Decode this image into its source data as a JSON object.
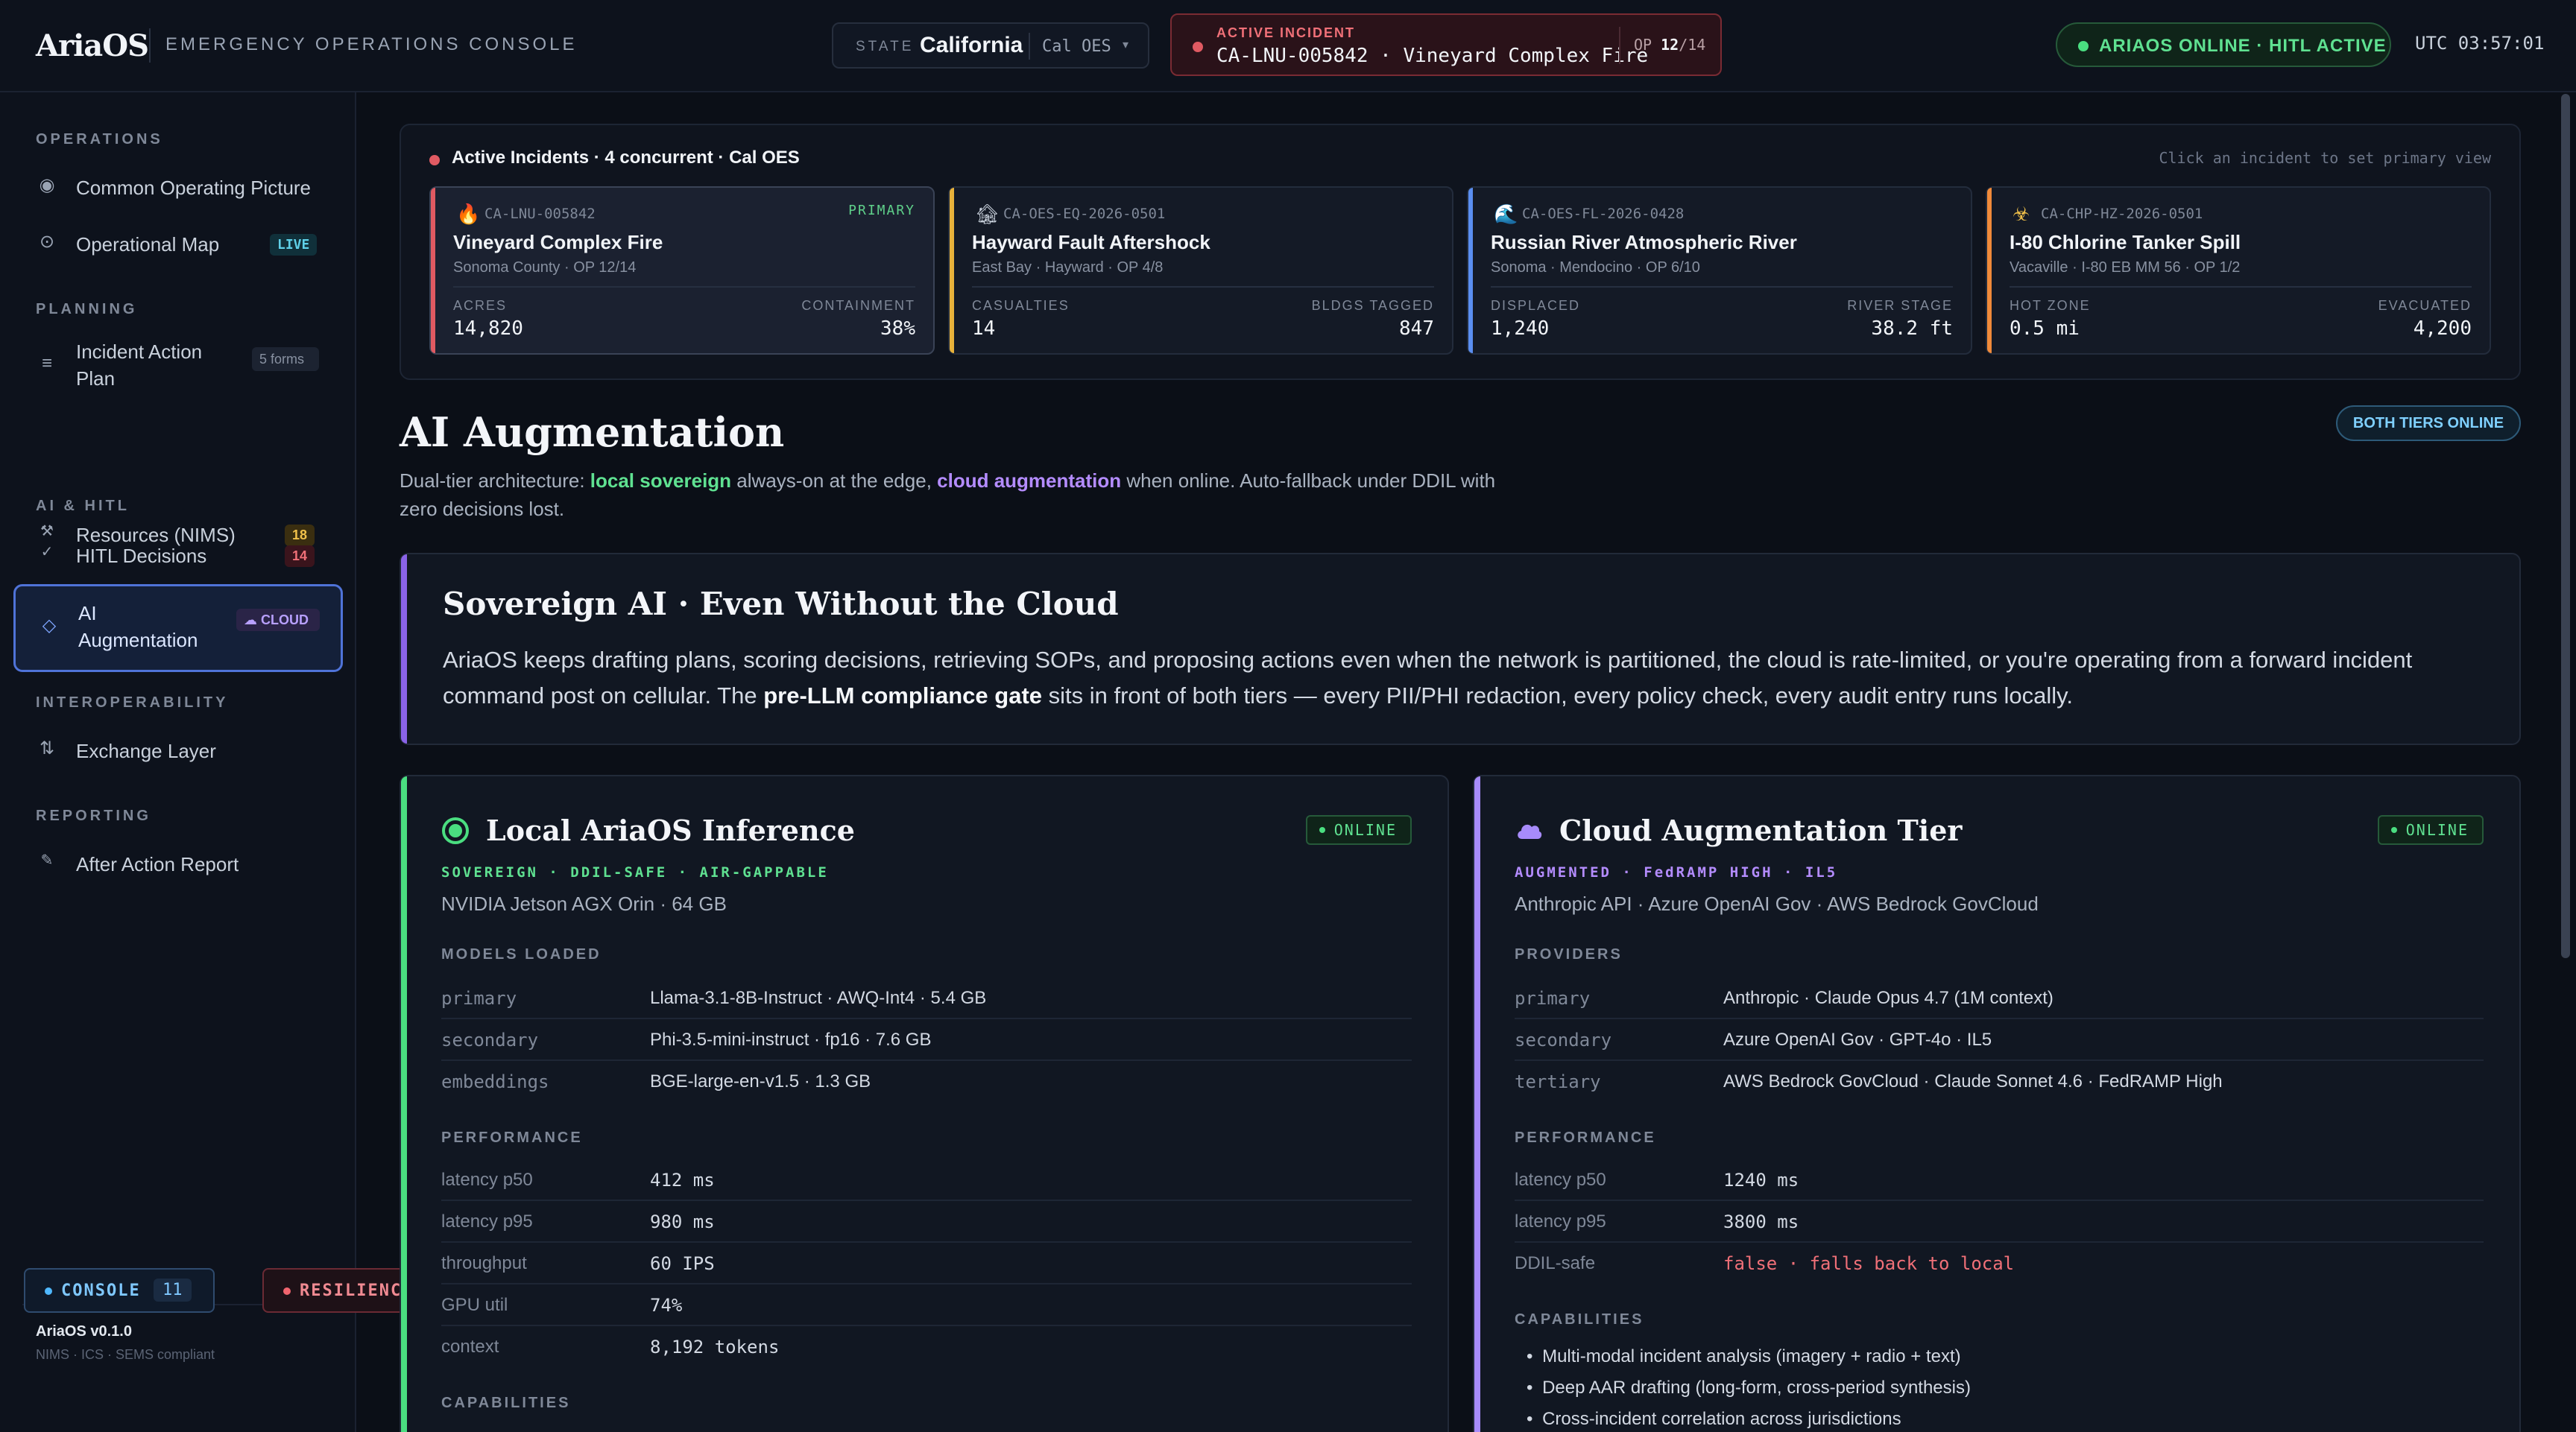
{
  "topbar": {
    "logo": "AriaOS",
    "console_title": "EMERGENCY OPERATIONS CONSOLE",
    "state_label": "STATE",
    "state_value": "California",
    "state_agency": "Cal OES",
    "active_incident_label": "ACTIVE INCIDENT",
    "active_incident_name": "CA-LNU-005842 · Vineyard Complex Fire",
    "op_prefix": "OP ",
    "op_current": "12",
    "op_total": "/14",
    "status_pill": "ARIAOS ONLINE · HITL ACTIVE",
    "utc_clock": "UTC 03:57:01"
  },
  "sidebar": {
    "sections": {
      "operations": "OPERATIONS",
      "planning": "PLANNING",
      "ai_hitl": "AI & HITL",
      "interoperability": "INTEROPERABILITY",
      "reporting": "REPORTING"
    },
    "items": {
      "cop": "Common Operating Picture",
      "map": "Operational Map",
      "map_badge": "LIVE",
      "iap": "Incident Action Plan",
      "iap_badge": "5 forms",
      "resources": "Resources (NIMS)",
      "resources_badge": "18",
      "hitl": "HITL Decisions",
      "hitl_badge": "14",
      "ai_aug": "AI Augmentation",
      "ai_aug_badge": "☁ CLOUD",
      "exchange": "Exchange Layer",
      "aar": "After Action Report"
    },
    "footer_version": "AriaOS v0.1.0",
    "footer_sub": "NIMS · ICS · SEMS compliant",
    "console_label": "CONSOLE",
    "console_count": "11",
    "resilience_label": "RESILIENCE LAB"
  },
  "incidents": {
    "title": "Active Incidents · 4 concurrent · Cal OES",
    "hint": "Click an incident to set primary view",
    "primary_tag": "PRIMARY",
    "cards": [
      {
        "emoji": "🔥",
        "id": "CA-LNU-005842",
        "name": "Vineyard Complex Fire",
        "sub": "Sonoma County · OP 12/14",
        "k1": "ACRES",
        "v1": "14,820",
        "k2": "CONTAINMENT",
        "v2": "38%",
        "color": "#e05a62"
      },
      {
        "emoji": "🏚",
        "id": "CA-OES-EQ-2026-0501",
        "name": "Hayward Fault Aftershock",
        "sub": "East Bay · Hayward · OP 4/8",
        "k1": "CASUALTIES",
        "v1": "14",
        "k2": "BLDGS TAGGED",
        "v2": "847",
        "color": "#e8b23a"
      },
      {
        "emoji": "🌊",
        "id": "CA-OES-FL-2026-0428",
        "name": "Russian River Atmospheric River",
        "sub": "Sonoma · Mendocino · OP 6/10",
        "k1": "DISPLACED",
        "v1": "1,240",
        "k2": "RIVER STAGE",
        "v2": "38.2 ft",
        "color": "#5a8ef0"
      },
      {
        "emoji": "☣",
        "id": "CA-CHP-HZ-2026-0501",
        "name": "I-80 Chlorine Tanker Spill",
        "sub": "Vacaville · I-80 EB MM 56 · OP 1/2",
        "k1": "HOT ZONE",
        "v1": "0.5 mi",
        "k2": "EVACUATED",
        "v2": "4,200",
        "color": "#f08a3a"
      }
    ]
  },
  "augmentation": {
    "title": "AI Augmentation",
    "desc_1": "Dual-tier architecture: ",
    "desc_local": "local sovereign",
    "desc_2": " always-on at the edge, ",
    "desc_cloud": "cloud augmentation",
    "desc_3": " when online. Auto-fallback under DDIL with zero decisions lost.",
    "both_pill": "BOTH TIERS ONLINE"
  },
  "sovereign": {
    "title": "Sovereign AI · Even Without the Cloud",
    "text_1": "AriaOS keeps drafting plans, scoring decisions, retrieving SOPs, and proposing actions even when the network is partitioned, the cloud is rate-limited, or you're operating from a forward incident command post on cellular. The ",
    "text_bold": "pre-LLM compliance gate",
    "text_2": " sits in front of both tiers — every PII/PHI redaction, every policy check, every audit entry runs locally."
  },
  "local_tier": {
    "title": "Local AriaOS Inference",
    "status": "ONLINE",
    "tags": "SOVEREIGN · DDIL-SAFE · AIR-GAPPABLE",
    "hardware": "NVIDIA Jetson AGX Orin · 64 GB",
    "models_header": "MODELS LOADED",
    "models": [
      {
        "k": "primary",
        "v": "Llama-3.1-8B-Instruct · AWQ-Int4 · 5.4 GB"
      },
      {
        "k": "secondary",
        "v": "Phi-3.5-mini-instruct · fp16 · 7.6 GB"
      },
      {
        "k": "embeddings",
        "v": "BGE-large-en-v1.5 · 1.3 GB"
      }
    ],
    "perf_header": "PERFORMANCE",
    "perf": [
      {
        "k": "latency p50",
        "v": "412 ms"
      },
      {
        "k": "latency p95",
        "v": "980 ms"
      },
      {
        "k": "throughput",
        "v": "60 IPS"
      },
      {
        "k": "GPU util",
        "v": "74%"
      },
      {
        "k": "context",
        "v": "8,192 tokens"
      }
    ],
    "cap_header": "CAPABILITIES"
  },
  "cloud_tier": {
    "title": "Cloud Augmentation Tier",
    "status": "ONLINE",
    "tags": "AUGMENTED · FedRAMP HIGH · IL5",
    "providers_line": "Anthropic API · Azure OpenAI Gov · AWS Bedrock GovCloud",
    "providers_header": "PROVIDERS",
    "providers": [
      {
        "k": "primary",
        "v": "Anthropic · Claude Opus 4.7 (1M context)"
      },
      {
        "k": "secondary",
        "v": "Azure OpenAI Gov · GPT-4o · IL5"
      },
      {
        "k": "tertiary",
        "v": "AWS Bedrock GovCloud · Claude Sonnet 4.6 · FedRAMP High"
      }
    ],
    "perf_header": "PERFORMANCE",
    "perf": [
      {
        "k": "latency p50",
        "v": "1240 ms"
      },
      {
        "k": "latency p95",
        "v": "3800 ms"
      },
      {
        "k": "DDIL-safe",
        "v": "false · falls back to local"
      }
    ],
    "cap_header": "CAPABILITIES",
    "capabilities": [
      "Multi-modal incident analysis (imagery + radio + text)",
      "Deep AAR drafting (long-form, cross-period synthesis)",
      "Cross-incident correlation across jurisdictions"
    ]
  },
  "colors": {
    "local_accent": "#4ade80",
    "cloud_accent": "#a78bfa",
    "alert_red": "#e05a62"
  }
}
